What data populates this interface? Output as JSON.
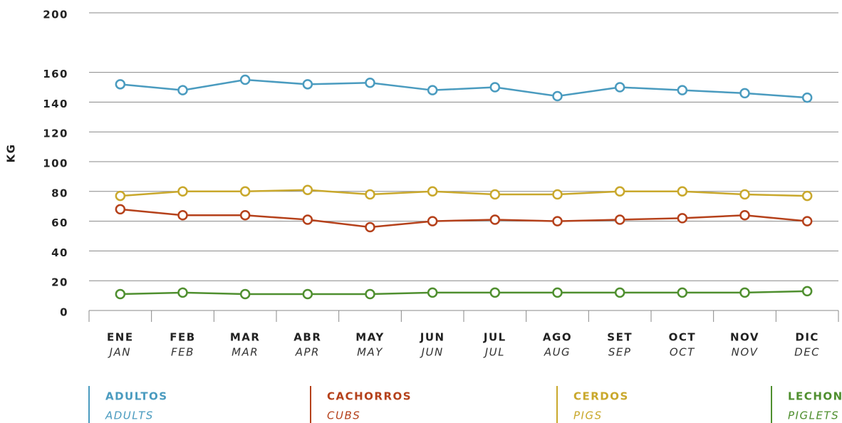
{
  "chart_data": {
    "type": "line",
    "y_label": "KG",
    "categories": [
      "ENE",
      "FEB",
      "MAR",
      "ABR",
      "MAY",
      "JUN",
      "JUL",
      "AGO",
      "SET",
      "OCT",
      "NOV",
      "DIC"
    ],
    "categories_en": [
      "JAN",
      "FEB",
      "MAR",
      "APR",
      "MAY",
      "JUN",
      "JUL",
      "AUG",
      "SEP",
      "OCT",
      "NOV",
      "DEC"
    ],
    "ylim": [
      0,
      200
    ],
    "yticks": [
      0,
      20,
      40,
      60,
      80,
      100,
      120,
      140,
      160,
      200
    ],
    "grid": true,
    "series": [
      {
        "name": "ADULTOS",
        "name_en": "ADULTS",
        "color": "#4a9bbf",
        "values": [
          152,
          148,
          155,
          152,
          153,
          148,
          150,
          144,
          150,
          148,
          146,
          143
        ]
      },
      {
        "name": "CACHORROS",
        "name_en": "CUBS",
        "color": "#b5411b",
        "values": [
          68,
          64,
          64,
          61,
          56,
          60,
          61,
          60,
          61,
          62,
          64,
          60
        ]
      },
      {
        "name": "CERDOS",
        "name_en": "PIGS",
        "color": "#c9a82c",
        "values": [
          77,
          80,
          80,
          81,
          78,
          80,
          78,
          78,
          80,
          80,
          78,
          77
        ]
      },
      {
        "name": "LECHONES",
        "name_en": "PIGLETS",
        "color": "#4f8f2f",
        "values": [
          11,
          12,
          11,
          11,
          11,
          12,
          12,
          12,
          12,
          12,
          12,
          13
        ]
      }
    ]
  }
}
